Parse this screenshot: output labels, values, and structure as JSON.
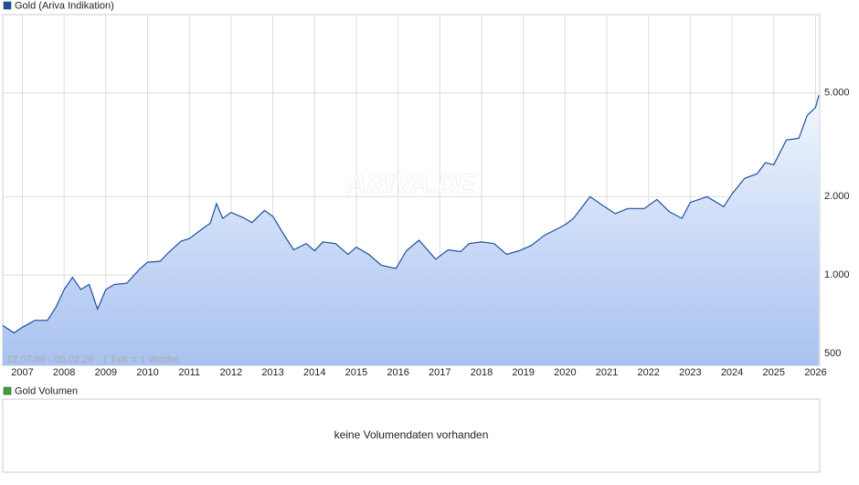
{
  "chart_data": {
    "type": "line",
    "title": "Gold (Ariva Indikation)",
    "watermark": "ARIVA.DE",
    "note": "12.07.06 - 05.02.26   1 Tick = 1 Woche",
    "volume_title": "Gold Volumen",
    "volume_message": "keine Volumendaten vorhanden",
    "log_y": true,
    "grid": true,
    "xlim": [
      2006.53,
      2026.1
    ],
    "xticks": [
      2007,
      2008,
      2009,
      2010,
      2011,
      2012,
      2013,
      2014,
      2015,
      2016,
      2017,
      2018,
      2019,
      2020,
      2021,
      2022,
      2023,
      2024,
      2025,
      2026
    ],
    "ylim": [
      450,
      10000
    ],
    "yticks": [
      500,
      {
        "value": 1000,
        "label": "1.000"
      },
      {
        "value": 2000,
        "label": "2.000"
      },
      {
        "value": 5000,
        "label": "5.000"
      }
    ],
    "x": [
      2006.53,
      2006.8,
      2007.0,
      2007.3,
      2007.6,
      2007.8,
      2008.0,
      2008.2,
      2008.4,
      2008.6,
      2008.8,
      2009.0,
      2009.2,
      2009.5,
      2009.8,
      2010.0,
      2010.3,
      2010.5,
      2010.8,
      2011.0,
      2011.3,
      2011.5,
      2011.65,
      2011.8,
      2012.0,
      2012.3,
      2012.5,
      2012.8,
      2013.0,
      2013.3,
      2013.5,
      2013.8,
      2014.0,
      2014.2,
      2014.5,
      2014.8,
      2015.0,
      2015.3,
      2015.6,
      2015.95,
      2016.2,
      2016.5,
      2016.9,
      2017.2,
      2017.5,
      2017.7,
      2018.0,
      2018.3,
      2018.6,
      2018.9,
      2019.2,
      2019.5,
      2019.8,
      2020.0,
      2020.2,
      2020.6,
      2020.9,
      2021.2,
      2021.5,
      2021.9,
      2022.2,
      2022.5,
      2022.8,
      2023.0,
      2023.4,
      2023.8,
      2024.0,
      2024.3,
      2024.6,
      2024.8,
      2025.0,
      2025.3,
      2025.6,
      2025.8,
      2026.0,
      2026.08
    ],
    "series": [
      {
        "name": "Gold",
        "color": "#1f4fa0",
        "values": [
          640,
          600,
          630,
          670,
          670,
          750,
          880,
          980,
          880,
          920,
          740,
          880,
          920,
          930,
          1050,
          1120,
          1130,
          1220,
          1350,
          1380,
          1500,
          1580,
          1880,
          1650,
          1740,
          1660,
          1590,
          1770,
          1680,
          1400,
          1250,
          1320,
          1240,
          1340,
          1320,
          1200,
          1280,
          1200,
          1090,
          1060,
          1240,
          1360,
          1150,
          1250,
          1230,
          1320,
          1340,
          1320,
          1200,
          1240,
          1300,
          1420,
          1500,
          1560,
          1650,
          2000,
          1850,
          1720,
          1800,
          1800,
          1950,
          1750,
          1650,
          1900,
          2000,
          1830,
          2050,
          2350,
          2450,
          2700,
          2650,
          3300,
          3350,
          4100,
          4400,
          4900
        ]
      }
    ],
    "volume_color": "#3aa23a"
  }
}
